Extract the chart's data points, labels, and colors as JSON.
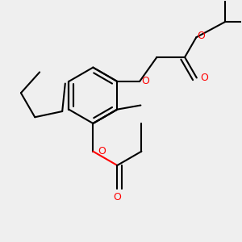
{
  "bg_color": "#efefef",
  "bond_color": "#000000",
  "oxygen_color": "#ff0000",
  "lw": 1.5,
  "figsize": [
    3.0,
    3.0
  ],
  "dpi": 100,
  "xlim": [
    0,
    3.0
  ],
  "ylim": [
    0,
    3.0
  ]
}
